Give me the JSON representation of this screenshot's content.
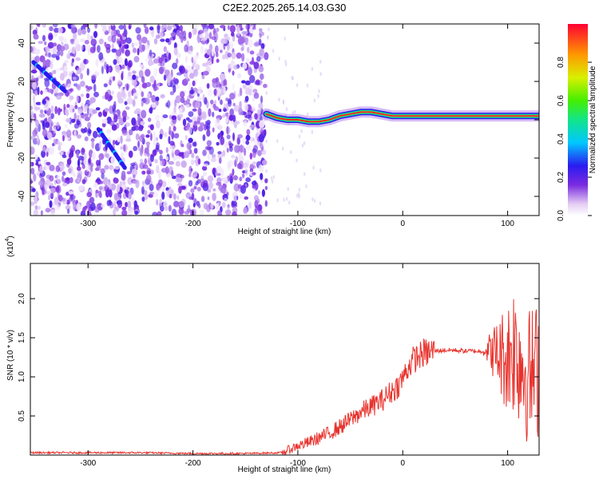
{
  "title": "C2E2.2025.265.14.03.G30",
  "chart_data": [
    {
      "type": "heatmap",
      "xlabel": "Height of straight line (km)",
      "ylabel": "Frequency (Hz)",
      "xlim": [
        -355,
        130
      ],
      "ylim": [
        -50,
        50
      ],
      "xticks": [
        -300,
        -200,
        -100,
        0,
        100
      ],
      "yticks": [
        -40,
        -20,
        0,
        20,
        40
      ],
      "colorbar": {
        "label": "Normalized spectral amplitude",
        "range": [
          0,
          1
        ],
        "ticks": [
          "0.0",
          "0.2",
          "0.4",
          "0.6",
          "0.8"
        ]
      },
      "noise_region_x": [
        -355,
        -130
      ],
      "features": [
        {
          "kind": "diagonal-trace",
          "x": [
            -352,
            -322
          ],
          "y": [
            30,
            15
          ]
        },
        {
          "kind": "diagonal-trace",
          "x": [
            -290,
            -265
          ],
          "y": [
            -5,
            -25
          ]
        },
        {
          "kind": "carrier-line",
          "x": [
            -130,
            -120,
            -110,
            -100,
            -90,
            -80,
            -70,
            -60,
            -50,
            -40,
            -30,
            -20,
            -10,
            0,
            50,
            100,
            130
          ],
          "y": [
            3,
            1,
            0,
            0,
            -1,
            -1,
            0,
            2,
            3,
            4,
            4,
            3,
            2,
            2,
            2,
            2,
            2
          ]
        }
      ]
    },
    {
      "type": "line",
      "xlabel": "Height of straight line (km)",
      "ylabel": "SNR (10 * v/v)",
      "yscale_label": "(x10",
      "yscale_exp": "4",
      "xlim": [
        -355,
        130
      ],
      "ylim": [
        0,
        2.45
      ],
      "xticks": [
        -300,
        -200,
        -100,
        0,
        100
      ],
      "yticks": [
        "0.5",
        "1.0",
        "1.5",
        "2.0"
      ],
      "color": "#e8322c",
      "series": [
        {
          "x": [
            -355,
            -300,
            -250,
            -200,
            -150,
            -115,
            -110,
            -100,
            -90,
            -80,
            -70,
            -60,
            -50,
            -40,
            -30,
            -20,
            -10,
            -5,
            0,
            5,
            10,
            20,
            30,
            40,
            50,
            60,
            70,
            75,
            80,
            90,
            100,
            105,
            110,
            115,
            120,
            125,
            130
          ],
          "y": [
            0.03,
            0.03,
            0.03,
            0.02,
            0.02,
            0.03,
            0.06,
            0.12,
            0.16,
            0.22,
            0.28,
            0.36,
            0.45,
            0.55,
            0.62,
            0.7,
            0.82,
            0.88,
            0.98,
            1.12,
            1.22,
            1.3,
            1.33,
            1.34,
            1.34,
            1.33,
            1.33,
            1.32,
            1.35,
            1.3,
            1.25,
            1.4,
            1.3,
            1.15,
            1.0,
            1.05,
            1.1
          ]
        }
      ]
    }
  ]
}
